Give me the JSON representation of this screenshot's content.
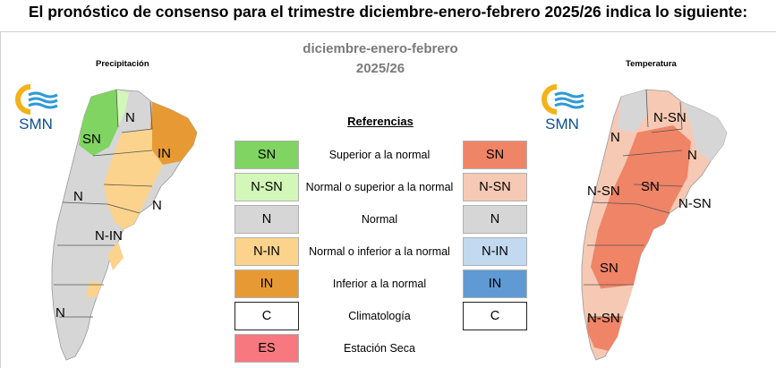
{
  "title": "El pronóstico de consenso para el trimestre diciembre-enero-febrero 2025/26 indica lo siguiente:",
  "subtitle": {
    "line1": "diciembre-enero-febrero",
    "line2": "2025/26"
  },
  "left_map": {
    "label": "Precipitación",
    "logo_text": "SMN",
    "regions": [
      "SN",
      "N",
      "IN",
      "N",
      "N",
      "N-IN",
      "N"
    ]
  },
  "right_map": {
    "label": "Temperatura",
    "logo_text": "SMN",
    "regions": [
      "N-SN",
      "N",
      "N",
      "N-SN",
      "SN",
      "N-SN",
      "SN",
      "N-SN"
    ]
  },
  "references": {
    "heading": "Referencias",
    "rows": [
      {
        "precip_code": "SN",
        "description": "Superior a la normal",
        "temp_code": "SN",
        "precip_color": "#7fd462",
        "temp_color": "#ef8467"
      },
      {
        "precip_code": "N-SN",
        "description": "Normal o superior a la normal",
        "temp_code": "N-SN",
        "precip_color": "#d2f7b8",
        "temp_color": "#f6c9b4"
      },
      {
        "precip_code": "N",
        "description": "Normal",
        "temp_code": "N",
        "precip_color": "#d6d6d6",
        "temp_color": "#d6d6d6"
      },
      {
        "precip_code": "N-IN",
        "description": "Normal o inferior a la normal",
        "temp_code": "N-IN",
        "precip_color": "#fbd38c",
        "temp_color": "#c2d9f0"
      },
      {
        "precip_code": "IN",
        "description": "Inferior a la normal",
        "temp_code": "IN",
        "precip_color": "#e79a34",
        "temp_color": "#5f9ad4"
      },
      {
        "precip_code": "C",
        "description": "Climatología",
        "temp_code": "C",
        "precip_color": "#ffffff",
        "temp_color": "#ffffff"
      },
      {
        "precip_code": "ES",
        "description": "Estación Seca",
        "precip_color": "#f7787f"
      }
    ]
  }
}
